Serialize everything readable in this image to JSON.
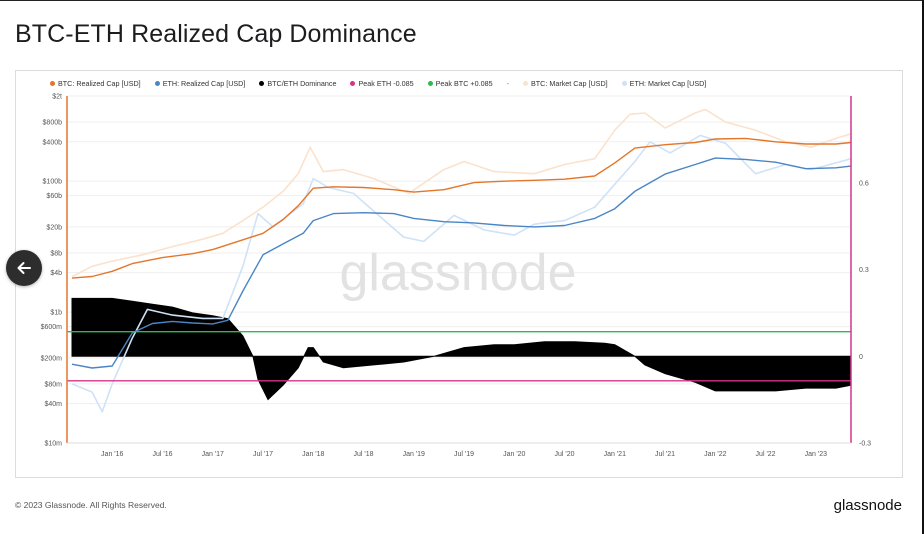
{
  "page": {
    "title": "BTC-ETH Realized Cap Dominance",
    "copyright": "© 2023 Glassnode. All Rights Reserved.",
    "brand": "glassnode",
    "watermark": "glassnode"
  },
  "colors": {
    "btc_realized": "#e4762a",
    "eth_realized": "#4a86c5",
    "dominance": "#000000",
    "peak_eth": "#d6338a",
    "peak_btc": "#2dbb4f",
    "btc_market": "#fbe2cc",
    "eth_market": "#cfe2f7",
    "left_axis": "#e4762a",
    "right_axis": "#d6338a"
  },
  "chart_data": {
    "type": "line",
    "title": "BTC-ETH Realized Cap Dominance",
    "legend": [
      {
        "label": "BTC: Realized Cap [USD]",
        "color": "#e4762a"
      },
      {
        "label": "ETH: Realized Cap [USD]",
        "color": "#4a86c5"
      },
      {
        "label": "BTC/ETH Dominance",
        "color": "#000000"
      },
      {
        "label": "Peak ETH -0.085",
        "color": "#d6338a"
      },
      {
        "label": "Peak BTC +0.085",
        "color": "#2dbb4f"
      },
      {
        "label": "BTC: Market Cap [USD]",
        "color": "#fbe2cc"
      },
      {
        "label": "ETH: Market Cap [USD]",
        "color": "#cfe2f7"
      }
    ],
    "legend_separator": "-",
    "x_ticks": [
      "Jan '16",
      "Jul '16",
      "Jan '17",
      "Jul '17",
      "Jan '18",
      "Jul '18",
      "Jan '19",
      "Jul '19",
      "Jan '20",
      "Jul '20",
      "Jan '21",
      "Jul '21",
      "Jan '22",
      "Jul '22",
      "Jan '23"
    ],
    "x_tick_times": [
      2016.0,
      2016.5,
      2017.0,
      2017.5,
      2018.0,
      2018.5,
      2019.0,
      2019.5,
      2020.0,
      2020.5,
      2021.0,
      2021.5,
      2022.0,
      2022.5,
      2023.0
    ],
    "x_range": [
      2015.55,
      2023.35
    ],
    "y_left": {
      "scale": "log",
      "range": [
        10000000,
        2000000000000
      ],
      "ticks": [
        {
          "label": "$2t",
          "value": 2000000000000
        },
        {
          "label": "$800b",
          "value": 800000000000
        },
        {
          "label": "$400b",
          "value": 400000000000
        },
        {
          "label": "$100b",
          "value": 100000000000
        },
        {
          "label": "$60b",
          "value": 60000000000
        },
        {
          "label": "$20b",
          "value": 20000000000
        },
        {
          "label": "$8b",
          "value": 8000000000
        },
        {
          "label": "$4b",
          "value": 4000000000
        },
        {
          "label": "$1b",
          "value": 1000000000
        },
        {
          "label": "$600m",
          "value": 600000000
        },
        {
          "label": "$200m",
          "value": 200000000
        },
        {
          "label": "$80m",
          "value": 80000000
        },
        {
          "label": "$40m",
          "value": 40000000
        },
        {
          "label": "$10m",
          "value": 10000000
        }
      ]
    },
    "y_right": {
      "scale": "linear",
      "range": [
        -0.3,
        0.9
      ],
      "ticks": [
        {
          "label": "0.6",
          "value": 0.6
        },
        {
          "label": "0.3",
          "value": 0.3
        },
        {
          "label": "0",
          "value": 0
        },
        {
          "label": "-0.3",
          "value": -0.3
        }
      ]
    },
    "series": [
      {
        "name": "BTC: Realized Cap [USD]",
        "axis": "left",
        "color": "#e4762a",
        "x": [
          2015.6,
          2015.8,
          2016.0,
          2016.2,
          2016.5,
          2016.8,
          2017.0,
          2017.25,
          2017.5,
          2017.7,
          2017.85,
          2018.0,
          2018.2,
          2018.5,
          2018.8,
          2019.0,
          2019.3,
          2019.6,
          2019.9,
          2020.2,
          2020.5,
          2020.8,
          2021.0,
          2021.2,
          2021.5,
          2021.8,
          2022.0,
          2022.3,
          2022.6,
          2022.9,
          2023.2,
          2023.35
        ],
        "values": [
          3300000000.0,
          3500000000.0,
          4200000000.0,
          5500000000.0,
          6800000000.0,
          7800000000.0,
          9000000000.0,
          12000000000.0,
          16000000000.0,
          26000000000.0,
          42000000000.0,
          78000000000.0,
          82000000000.0,
          80000000000.0,
          74000000000.0,
          68000000000.0,
          74000000000.0,
          95000000000.0,
          100000000000.0,
          103000000000.0,
          107000000000.0,
          120000000000.0,
          190000000000.0,
          320000000000.0,
          360000000000.0,
          390000000000.0,
          440000000000.0,
          450000000000.0,
          400000000000.0,
          370000000000.0,
          370000000000.0,
          390000000000.0
        ]
      },
      {
        "name": "ETH: Realized Cap [USD]",
        "axis": "left",
        "color": "#4a86c5",
        "x": [
          2015.6,
          2015.8,
          2016.0,
          2016.2,
          2016.4,
          2016.6,
          2016.8,
          2017.0,
          2017.15,
          2017.3,
          2017.5,
          2017.7,
          2017.9,
          2018.0,
          2018.2,
          2018.5,
          2018.8,
          2019.0,
          2019.3,
          2019.6,
          2019.9,
          2020.2,
          2020.5,
          2020.8,
          2021.0,
          2021.2,
          2021.5,
          2021.8,
          2022.0,
          2022.3,
          2022.6,
          2022.9,
          2023.2,
          2023.35
        ],
        "values": [
          160000000.0,
          140000000.0,
          150000000.0,
          480000000.0,
          670000000.0,
          720000000.0,
          680000000.0,
          660000000.0,
          750000000.0,
          2100000000.0,
          7500000000.0,
          11000000000.0,
          16000000000.0,
          25000000000.0,
          32000000000.0,
          33000000000.0,
          32000000000.0,
          27000000000.0,
          24000000000.0,
          23000000000.0,
          21000000000.0,
          20000000000.0,
          21000000000.0,
          27000000000.0,
          38000000000.0,
          70000000000.0,
          128000000000.0,
          180000000000.0,
          225000000000.0,
          215000000000.0,
          195000000000.0,
          155000000000.0,
          160000000000.0,
          170000000000.0
        ]
      },
      {
        "name": "BTC/ETH Dominance",
        "axis": "right",
        "color": "#000000",
        "x": [
          2015.6,
          2015.8,
          2016.0,
          2016.2,
          2016.4,
          2016.6,
          2016.8,
          2017.0,
          2017.15,
          2017.3,
          2017.4,
          2017.45,
          2017.55,
          2017.7,
          2017.85,
          2017.95,
          2018.0,
          2018.1,
          2018.3,
          2018.6,
          2018.9,
          2019.2,
          2019.5,
          2019.8,
          2020.0,
          2020.3,
          2020.6,
          2020.9,
          2021.0,
          2021.2,
          2021.3,
          2021.5,
          2021.8,
          2022.0,
          2022.3,
          2022.6,
          2022.9,
          2023.2,
          2023.35
        ],
        "values": [
          0.2,
          0.2,
          0.2,
          0.19,
          0.18,
          0.17,
          0.15,
          0.14,
          0.13,
          0.07,
          0.0,
          -0.08,
          -0.15,
          -0.1,
          -0.04,
          0.03,
          0.03,
          -0.02,
          -0.04,
          -0.03,
          -0.02,
          0.0,
          0.03,
          0.04,
          0.04,
          0.05,
          0.05,
          0.045,
          0.04,
          0.0,
          -0.03,
          -0.06,
          -0.09,
          -0.12,
          -0.12,
          -0.12,
          -0.11,
          -0.11,
          -0.1
        ]
      },
      {
        "name": "BTC: Market Cap [USD]",
        "axis": "left",
        "color": "#fbe2cc",
        "x": [
          2015.6,
          2015.8,
          2016.0,
          2016.3,
          2016.6,
          2016.9,
          2017.1,
          2017.3,
          2017.5,
          2017.7,
          2017.85,
          2017.97,
          2018.1,
          2018.3,
          2018.6,
          2018.95,
          2019.3,
          2019.5,
          2019.8,
          2020.2,
          2020.5,
          2020.8,
          2021.0,
          2021.15,
          2021.3,
          2021.5,
          2021.8,
          2021.9,
          2022.1,
          2022.4,
          2022.7,
          2022.95,
          2023.2,
          2023.35
        ],
        "values": [
          3500000000.0,
          5000000000.0,
          6000000000.0,
          7500000000.0,
          10000000000.0,
          13000000000.0,
          16000000000.0,
          25000000000.0,
          40000000000.0,
          70000000000.0,
          130000000000.0,
          330000000000.0,
          140000000000.0,
          150000000000.0,
          110000000000.0,
          65000000000.0,
          150000000000.0,
          200000000000.0,
          140000000000.0,
          130000000000.0,
          180000000000.0,
          220000000000.0,
          600000000000.0,
          1050000000000.0,
          1100000000000.0,
          650000000000.0,
          1100000000000.0,
          1250000000000.0,
          800000000000.0,
          600000000000.0,
          400000000000.0,
          330000000000.0,
          450000000000.0,
          530000000000.0
        ]
      },
      {
        "name": "ETH: Market Cap [USD]",
        "axis": "left",
        "color": "#cfe2f7",
        "x": [
          2015.6,
          2015.8,
          2015.9,
          2016.0,
          2016.2,
          2016.35,
          2016.6,
          2016.9,
          2017.1,
          2017.3,
          2017.45,
          2017.6,
          2017.75,
          2017.9,
          2018.0,
          2018.15,
          2018.4,
          2018.6,
          2018.9,
          2019.1,
          2019.4,
          2019.7,
          2020.0,
          2020.2,
          2020.5,
          2020.8,
          2021.0,
          2021.2,
          2021.35,
          2021.55,
          2021.85,
          2022.1,
          2022.4,
          2022.7,
          2022.95,
          2023.2,
          2023.35
        ],
        "values": [
          80000000.0,
          60000000.0,
          30000000.0,
          80000000.0,
          400000000.0,
          1100000000.0,
          900000000.0,
          800000000.0,
          800000000.0,
          5000000000.0,
          32000000000.0,
          20000000000.0,
          30000000000.0,
          45000000000.0,
          110000000000.0,
          80000000000.0,
          65000000000.0,
          35000000000.0,
          14000000000.0,
          12000000000.0,
          30000000000.0,
          18000000000.0,
          15000000000.0,
          22000000000.0,
          25000000000.0,
          40000000000.0,
          90000000000.0,
          200000000000.0,
          400000000000.0,
          270000000000.0,
          500000000000.0,
          380000000000.0,
          130000000000.0,
          180000000000.0,
          150000000000.0,
          190000000000.0,
          220000000000.0
        ]
      }
    ],
    "reference_lines": [
      {
        "name": "Peak BTC +0.085",
        "axis": "right",
        "value": 0.085,
        "color": "#2dbb4f"
      },
      {
        "name": "Peak ETH -0.085",
        "axis": "right",
        "value": -0.085,
        "color": "#d6338a"
      }
    ]
  }
}
